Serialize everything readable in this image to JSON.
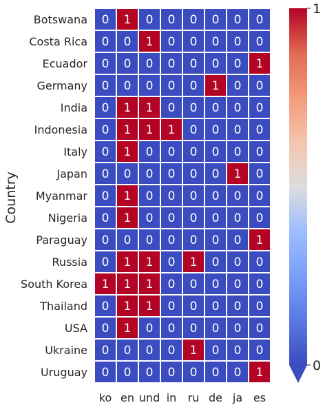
{
  "chart_data": {
    "type": "heatmap",
    "title": "",
    "xlabel": "",
    "ylabel": "Country",
    "rows": [
      "Botswana",
      "Costa Rica",
      "Ecuador",
      "Germany",
      "India",
      "Indonesia",
      "Italy",
      "Japan",
      "Myanmar",
      "Nigeria",
      "Paraguay",
      "Russia",
      "South Korea",
      "Thailand",
      "USA",
      "Ukraine",
      "Uruguay"
    ],
    "columns": [
      "ko",
      "en",
      "und",
      "in",
      "ru",
      "de",
      "ja",
      "es"
    ],
    "values": [
      [
        0,
        1,
        0,
        0,
        0,
        0,
        0,
        0
      ],
      [
        0,
        0,
        1,
        0,
        0,
        0,
        0,
        0
      ],
      [
        0,
        0,
        0,
        0,
        0,
        0,
        0,
        1
      ],
      [
        0,
        0,
        0,
        0,
        0,
        1,
        0,
        0
      ],
      [
        0,
        1,
        1,
        0,
        0,
        0,
        0,
        0
      ],
      [
        0,
        1,
        1,
        1,
        0,
        0,
        0,
        0
      ],
      [
        0,
        1,
        0,
        0,
        0,
        0,
        0,
        0
      ],
      [
        0,
        0,
        0,
        0,
        0,
        0,
        1,
        0
      ],
      [
        0,
        1,
        0,
        0,
        0,
        0,
        0,
        0
      ],
      [
        0,
        1,
        0,
        0,
        0,
        0,
        0,
        0
      ],
      [
        0,
        0,
        0,
        0,
        0,
        0,
        0,
        1
      ],
      [
        0,
        1,
        1,
        0,
        1,
        0,
        0,
        0
      ],
      [
        1,
        1,
        1,
        0,
        0,
        0,
        0,
        0
      ],
      [
        0,
        1,
        1,
        0,
        0,
        0,
        0,
        0
      ],
      [
        0,
        1,
        0,
        0,
        0,
        0,
        0,
        0
      ],
      [
        0,
        0,
        0,
        0,
        1,
        0,
        0,
        0
      ],
      [
        0,
        0,
        0,
        0,
        0,
        0,
        0,
        1
      ]
    ],
    "annotate": true,
    "colormap": "coolwarm",
    "colors": {
      "low": "#3b4cc0",
      "high": "#b40426",
      "mid": "#dddddd",
      "grid": "#ffffff"
    },
    "colorbar": {
      "min": 0,
      "max": 1,
      "ticks": [
        0,
        1
      ],
      "extend": "min"
    }
  }
}
